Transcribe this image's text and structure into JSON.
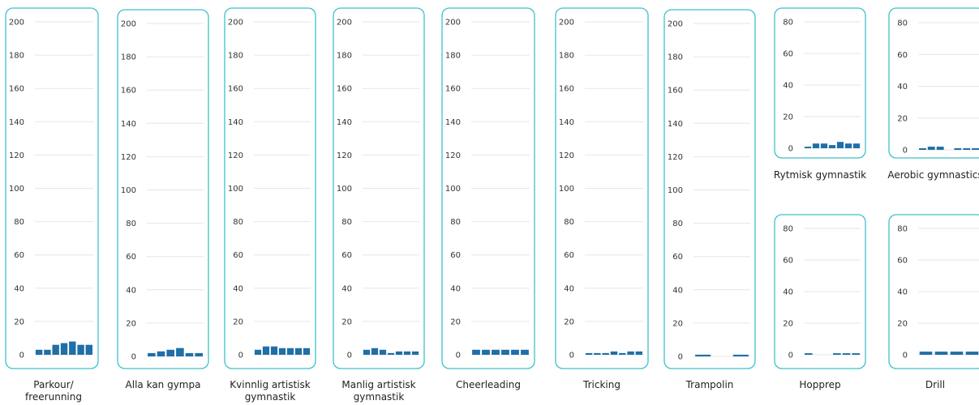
{
  "chart_data": [
    {
      "type": "bar",
      "title": "Parkour/\nfreerunning",
      "ylim": [
        0,
        200
      ],
      "yticks": [
        0,
        20,
        40,
        60,
        80,
        100,
        120,
        140,
        160,
        180,
        200
      ],
      "values": [
        3,
        3,
        6,
        7,
        8,
        6,
        6
      ]
    },
    {
      "type": "bar",
      "title": "Alla kan gympa",
      "ylim": [
        0,
        200
      ],
      "yticks": [
        0,
        20,
        40,
        60,
        80,
        100,
        120,
        140,
        160,
        180,
        200
      ],
      "values": [
        2,
        3,
        4,
        5,
        2,
        2
      ]
    },
    {
      "type": "bar",
      "title": "Kvinnlig artistisk\ngymnastik",
      "ylim": [
        0,
        200
      ],
      "yticks": [
        0,
        20,
        40,
        60,
        80,
        100,
        120,
        140,
        160,
        180,
        200
      ],
      "values": [
        3,
        5,
        5,
        4,
        4,
        4,
        4
      ]
    },
    {
      "type": "bar",
      "title": "Manlig artistisk\ngymnastik",
      "ylim": [
        0,
        200
      ],
      "yticks": [
        0,
        20,
        40,
        60,
        80,
        100,
        120,
        140,
        160,
        180,
        200
      ],
      "values": [
        3,
        4,
        3,
        1,
        2,
        2,
        2
      ]
    },
    {
      "type": "bar",
      "title": "Cheerleading",
      "ylim": [
        0,
        200
      ],
      "yticks": [
        0,
        20,
        40,
        60,
        80,
        100,
        120,
        140,
        160,
        180,
        200
      ],
      "values": [
        3,
        3,
        3,
        3,
        3,
        3
      ]
    },
    {
      "type": "bar",
      "title": "Tricking",
      "ylim": [
        0,
        200
      ],
      "yticks": [
        0,
        20,
        40,
        60,
        80,
        100,
        120,
        140,
        160,
        180,
        200
      ],
      "values": [
        1,
        1,
        1,
        2,
        1,
        2,
        2
      ]
    },
    {
      "type": "bar",
      "title": "Trampolin",
      "ylim": [
        0,
        200
      ],
      "yticks": [
        0,
        20,
        40,
        60,
        80,
        100,
        120,
        140,
        160,
        180,
        200
      ],
      "values": [
        1,
        0,
        1
      ]
    },
    {
      "type": "bar",
      "title": "Rytmisk gymnastik",
      "ylim": [
        0,
        80
      ],
      "yticks": [
        0,
        20,
        40,
        60,
        80
      ],
      "values": [
        1,
        3,
        3,
        2,
        4,
        3,
        3
      ]
    },
    {
      "type": "bar",
      "title": "Aerobic gymnastics",
      "ylim": [
        0,
        80
      ],
      "yticks": [
        0,
        20,
        40,
        60,
        80
      ],
      "values": [
        1,
        2,
        2,
        0,
        1,
        1,
        1
      ]
    },
    {
      "type": "bar",
      "title": "Hopprep",
      "ylim": [
        0,
        80
      ],
      "yticks": [
        0,
        20,
        40,
        60,
        80
      ],
      "values": [
        1,
        0,
        0,
        1,
        1,
        1
      ]
    },
    {
      "type": "bar",
      "title": "Drill",
      "ylim": [
        0,
        80
      ],
      "yticks": [
        0,
        20,
        40,
        60,
        80
      ],
      "values": [
        2,
        2,
        2,
        2
      ]
    }
  ]
}
